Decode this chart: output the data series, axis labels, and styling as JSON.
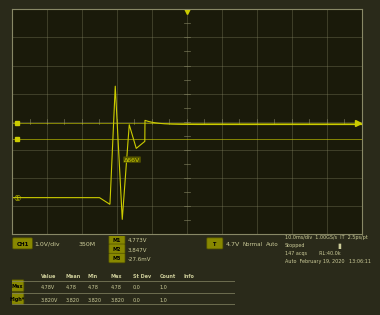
{
  "bg_color": "#2a2a1a",
  "grid_color": "#888866",
  "plot_bg_color": "#1a1a0a",
  "waveform_color": "#cccc00",
  "border_color": "#888866",
  "panel_bg": "#3a3a2a",
  "text_color": "#cccc99",
  "yellow_label_bg": "#888800",
  "grid_rows": 8,
  "grid_cols": 10,
  "xlim": [
    0,
    10
  ],
  "ylim": [
    0,
    8
  ],
  "ch1_label": "1.0V/div",
  "probe_label": "350M",
  "meas1": "4.773V",
  "meas2": "3.847V",
  "meas3": "-27.6mV",
  "trigger_label": "4.7V",
  "mode": "Normal",
  "auto": "Auto",
  "timebase": "10.0ms/div",
  "sample_rate": "1.00GS/s",
  "interp": "2.5ps/pt",
  "status": "Stopped",
  "acqs": "147 acqs",
  "rl": "RL:40.0k",
  "date": "February 19, 2020",
  "time": "13:06:11",
  "table_headers": [
    "",
    "Value",
    "Mean",
    "Min",
    "Max",
    "St Dev",
    "Count",
    "Info"
  ],
  "table_row1": [
    "Max",
    "4.78V",
    "4.78",
    "4.78",
    "4.78",
    "0.0",
    "1.0",
    ""
  ],
  "table_row2": [
    "High*",
    "3.820V",
    "3.820",
    "3.820",
    "3.820",
    "0.0",
    "1.0",
    ""
  ],
  "signal_baseline_y": 1.3,
  "signal_high_y": 3.9,
  "signal_peak_y": 5.3,
  "signal_trough_y": 0.5,
  "signal_transition_x": 2.8,
  "signal_settle_x": 4.5
}
